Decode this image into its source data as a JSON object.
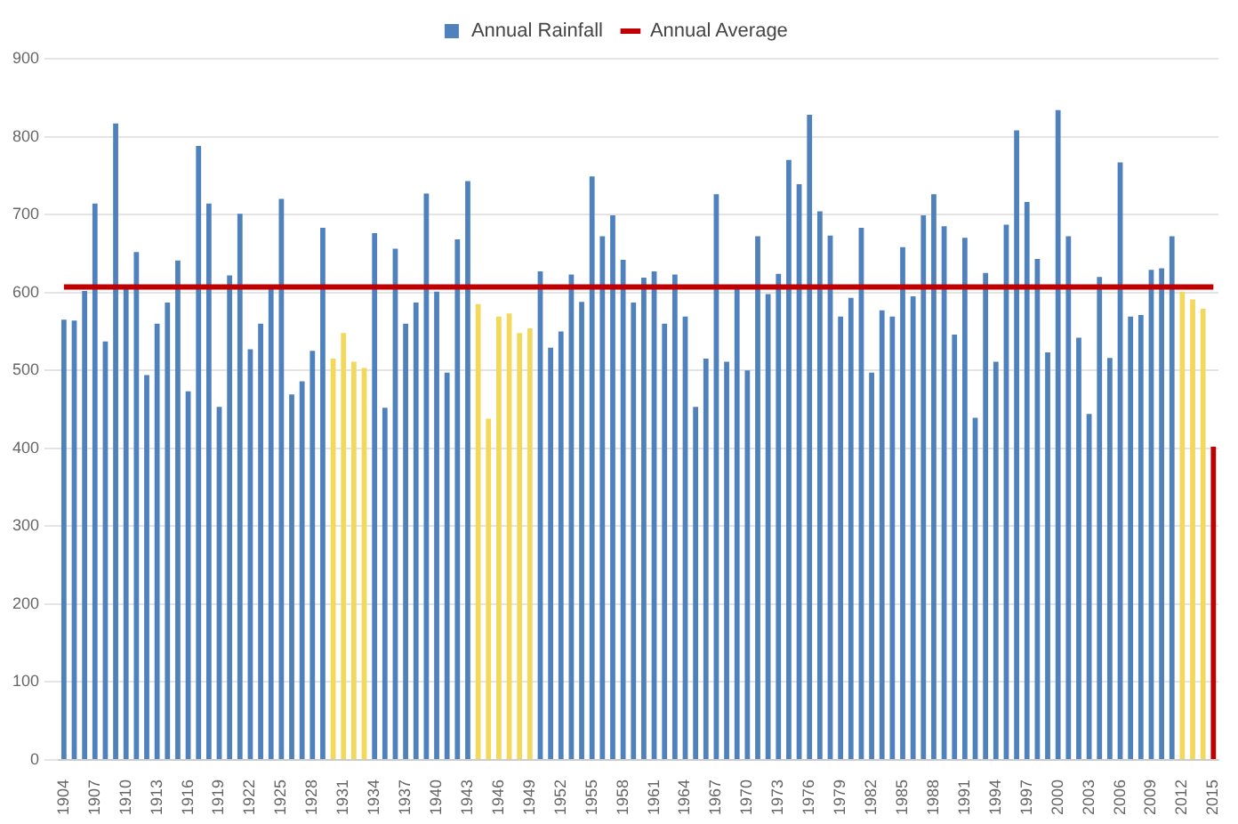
{
  "chart_data": {
    "type": "bar",
    "categories": [
      "1904",
      null,
      null,
      "1907",
      null,
      null,
      "1910",
      null,
      null,
      "1913",
      null,
      null,
      "1916",
      null,
      null,
      "1919",
      null,
      null,
      "1922",
      null,
      null,
      "1925",
      null,
      null,
      "1928",
      null,
      null,
      "1931",
      null,
      null,
      "1934",
      null,
      null,
      "1937",
      null,
      null,
      "1940",
      null,
      null,
      "1943",
      null,
      null,
      "1946",
      null,
      null,
      "1949",
      null,
      null,
      "1952",
      null,
      null,
      "1955",
      null,
      null,
      "1958",
      null,
      null,
      "1961",
      null,
      null,
      "1964",
      null,
      null,
      "1967",
      null,
      null,
      "1970",
      null,
      null,
      "1973",
      null,
      null,
      "1976",
      null,
      null,
      "1979",
      null,
      null,
      "1982",
      null,
      null,
      "1985",
      null,
      null,
      "1988",
      null,
      null,
      "1991",
      null,
      null,
      "1994",
      null,
      null,
      "1997",
      null,
      null,
      "2000",
      null,
      null,
      "2003",
      null,
      null,
      "2006",
      null,
      null,
      "2009",
      null,
      null,
      "2012",
      null,
      null,
      "2015"
    ],
    "series": [
      {
        "name": "Annual Rainfall",
        "color": "#4f81bd",
        "colors": [
          "#4f81bd",
          "#4f81bd",
          "#4f81bd",
          "#4f81bd",
          "#4f81bd",
          "#4f81bd",
          "#4f81bd",
          "#4f81bd",
          "#4f81bd",
          "#4f81bd",
          "#4f81bd",
          "#4f81bd",
          "#4f81bd",
          "#4f81bd",
          "#4f81bd",
          "#4f81bd",
          "#4f81bd",
          "#4f81bd",
          "#4f81bd",
          "#4f81bd",
          "#4f81bd",
          "#4f81bd",
          "#4f81bd",
          "#4f81bd",
          "#4f81bd",
          "#4f81bd",
          "#f2d95c",
          "#f2d95c",
          "#f2d95c",
          "#f2d95c",
          "#4f81bd",
          "#4f81bd",
          "#4f81bd",
          "#4f81bd",
          "#4f81bd",
          "#4f81bd",
          "#4f81bd",
          "#4f81bd",
          "#4f81bd",
          "#4f81bd",
          "#f2d95c",
          "#f2d95c",
          "#f2d95c",
          "#f2d95c",
          "#f2d95c",
          "#f2d95c",
          "#4f81bd",
          "#4f81bd",
          "#4f81bd",
          "#4f81bd",
          "#4f81bd",
          "#4f81bd",
          "#4f81bd",
          "#4f81bd",
          "#4f81bd",
          "#4f81bd",
          "#4f81bd",
          "#4f81bd",
          "#4f81bd",
          "#4f81bd",
          "#4f81bd",
          "#4f81bd",
          "#4f81bd",
          "#4f81bd",
          "#4f81bd",
          "#4f81bd",
          "#4f81bd",
          "#4f81bd",
          "#4f81bd",
          "#4f81bd",
          "#4f81bd",
          "#4f81bd",
          "#4f81bd",
          "#4f81bd",
          "#4f81bd",
          "#4f81bd",
          "#4f81bd",
          "#4f81bd",
          "#4f81bd",
          "#4f81bd",
          "#4f81bd",
          "#4f81bd",
          "#4f81bd",
          "#4f81bd",
          "#4f81bd",
          "#4f81bd",
          "#4f81bd",
          "#4f81bd",
          "#4f81bd",
          "#4f81bd",
          "#4f81bd",
          "#4f81bd",
          "#4f81bd",
          "#4f81bd",
          "#4f81bd",
          "#4f81bd",
          "#4f81bd",
          "#4f81bd",
          "#4f81bd",
          "#4f81bd",
          "#4f81bd",
          "#4f81bd",
          "#4f81bd",
          "#4f81bd",
          "#4f81bd",
          "#4f81bd",
          "#4f81bd",
          "#4f81bd",
          "#f2d95c",
          "#f2d95c",
          "#f2d95c",
          "#c00000"
        ],
        "values": [
          565,
          564,
          602,
          714,
          537,
          817,
          606,
          652,
          494,
          560,
          587,
          641,
          473,
          788,
          714,
          453,
          622,
          701,
          527,
          560,
          606,
          720,
          469,
          486,
          525,
          683,
          515,
          548,
          511,
          503,
          676,
          452,
          656,
          560,
          587,
          727,
          601,
          497,
          668,
          743,
          585,
          438,
          569,
          573,
          548,
          554,
          627,
          529,
          550,
          623,
          588,
          749,
          672,
          699,
          642,
          587,
          619,
          627,
          560,
          623,
          569,
          453,
          515,
          726,
          511,
          606,
          500,
          672,
          598,
          624,
          770,
          739,
          828,
          704,
          673,
          569,
          593,
          683,
          497,
          577,
          569,
          658,
          595,
          699,
          726,
          685,
          546,
          670,
          439,
          625,
          511,
          687,
          808,
          716,
          643,
          523,
          834,
          672,
          542,
          444,
          620,
          516,
          767,
          569,
          571,
          629,
          631,
          672,
          601,
          591,
          579,
          402
        ]
      },
      {
        "name": "Annual Average",
        "type": "line",
        "color": "#c00000",
        "values": [
          607,
          607,
          607,
          607,
          607,
          607,
          607,
          607,
          607,
          607,
          607,
          607,
          607,
          607,
          607,
          607,
          607,
          607,
          607,
          607,
          607,
          607,
          607,
          607,
          607,
          607,
          607,
          607,
          607,
          607,
          607,
          607,
          607,
          607,
          607,
          607,
          607,
          607,
          607,
          607,
          607,
          607,
          607,
          607,
          607,
          607,
          607,
          607,
          607,
          607,
          607,
          607,
          607,
          607,
          607,
          607,
          607,
          607,
          607,
          607,
          607,
          607,
          607,
          607,
          607,
          607,
          607,
          607,
          607,
          607,
          607,
          607,
          607,
          607,
          607,
          607,
          607,
          607,
          607,
          607,
          607,
          607,
          607,
          607,
          607,
          607,
          607,
          607,
          607,
          607,
          607,
          607,
          607,
          607,
          607,
          607,
          607,
          607,
          607,
          607,
          607,
          607,
          607,
          607,
          607,
          607,
          607,
          607,
          607,
          607,
          607,
          607
        ]
      }
    ],
    "ylim": [
      0,
      900
    ],
    "yticks": [
      0,
      100,
      200,
      300,
      400,
      500,
      600,
      700,
      800,
      900
    ],
    "grid": "y",
    "legend": "top"
  }
}
